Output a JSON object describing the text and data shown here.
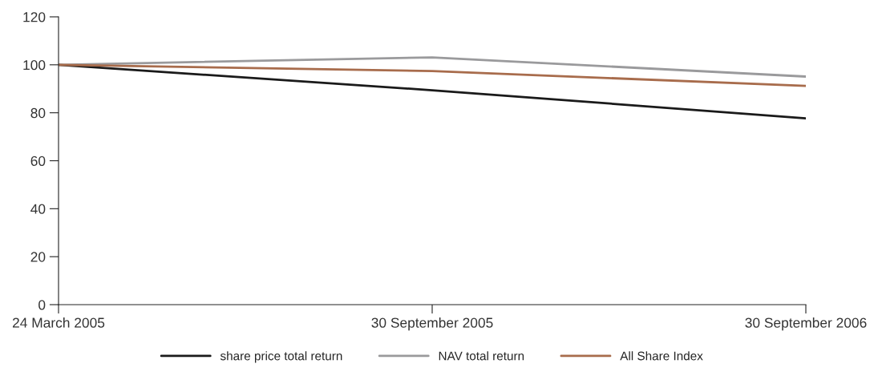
{
  "chart_data": {
    "type": "line",
    "categories": [
      "24 March 2005",
      "30 September 2005",
      "30 September 2006"
    ],
    "series": [
      {
        "name": "share price total return",
        "color": "#1a1a1a",
        "values": [
          100,
          89.4,
          77.7
        ]
      },
      {
        "name": "NAV total return",
        "color": "#9a9a9c",
        "values": [
          100,
          103.1,
          95.1
        ]
      },
      {
        "name": "All Share Index",
        "color": "#a86c4c",
        "values": [
          100,
          97.4,
          91.2
        ]
      }
    ],
    "ylim": [
      0,
      120
    ],
    "yticks": [
      0,
      20,
      40,
      60,
      80,
      100,
      120
    ],
    "grid": false,
    "legend": "bottom",
    "marker": "none",
    "line_style": "solid"
  }
}
